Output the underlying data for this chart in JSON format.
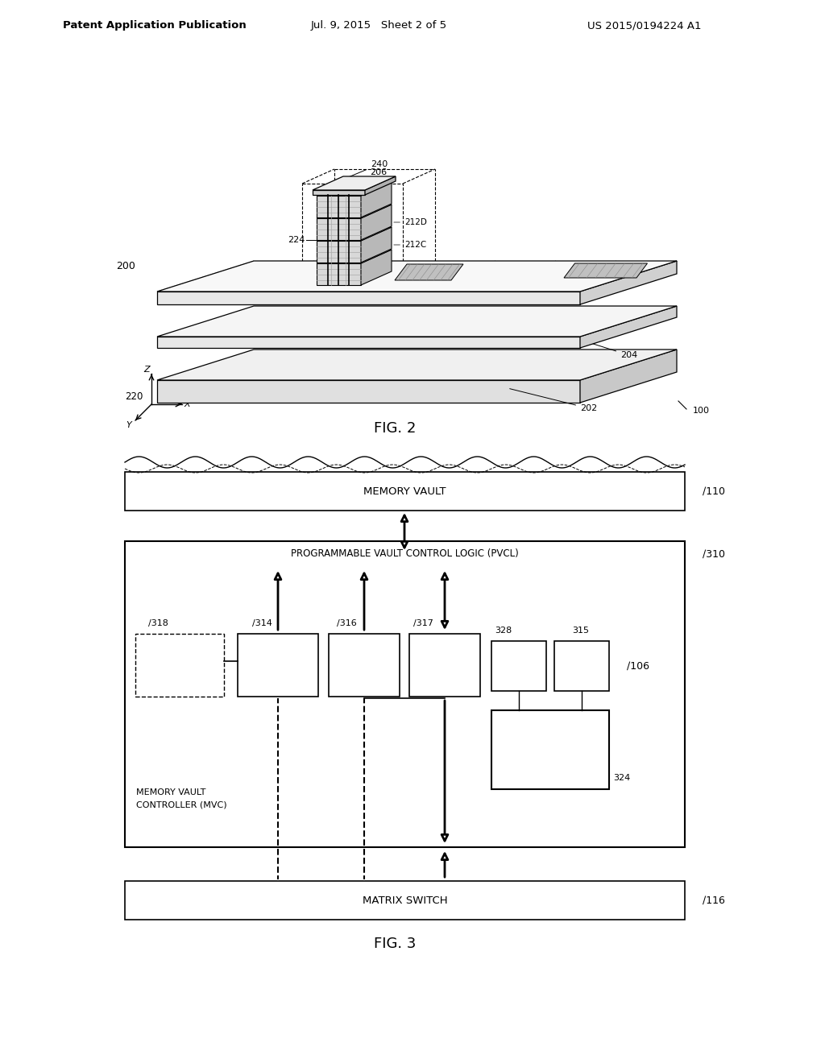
{
  "bg_color": "#ffffff",
  "header_left": "Patent Application Publication",
  "header_mid": "Jul. 9, 2015   Sheet 2 of 5",
  "header_right": "US 2015/0194224 A1",
  "fig2_label": "FIG. 2",
  "fig3_label": "FIG. 3"
}
